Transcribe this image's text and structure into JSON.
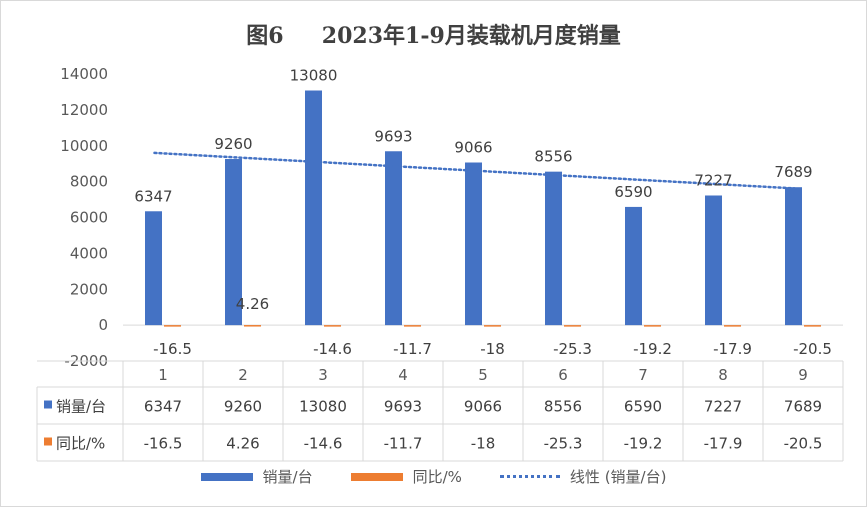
{
  "chart_data": {
    "type": "bar",
    "title": "图6     2023年1-9月装载机月度销量",
    "categories": [
      "1",
      "2",
      "3",
      "4",
      "5",
      "6",
      "7",
      "8",
      "9"
    ],
    "series": [
      {
        "name": "销量/台",
        "color": "#4472c4",
        "values": [
          6347,
          9260,
          13080,
          9693,
          9066,
          8556,
          6590,
          7227,
          7689
        ],
        "labels": [
          "6347",
          "9260",
          "13080",
          "9693",
          "9066",
          "8556",
          "6590",
          "7227",
          "7689"
        ]
      },
      {
        "name": "同比/%",
        "color": "#ed7d31",
        "values": [
          -16.5,
          4.26,
          -14.6,
          -11.7,
          -18,
          -25.3,
          -19.2,
          -17.9,
          -20.5
        ],
        "labels": [
          "-16.5",
          "4.26",
          "-14.6",
          "-11.7",
          "-18",
          "-25.3",
          "-19.2",
          "-17.9",
          "-20.5"
        ]
      }
    ],
    "trendline": {
      "name": "线性 (销量/台)",
      "of_series": "销量/台",
      "type": "linear",
      "style": "dotted"
    },
    "ylim": [
      -2000,
      14000
    ],
    "yticks": [
      "14000",
      "12000",
      "10000",
      "8000",
      "6000",
      "4000",
      "2000",
      "0",
      "-2000"
    ],
    "xlabel": "",
    "ylabel": "",
    "grid": false,
    "data_table": true,
    "legend_position": "bottom"
  }
}
